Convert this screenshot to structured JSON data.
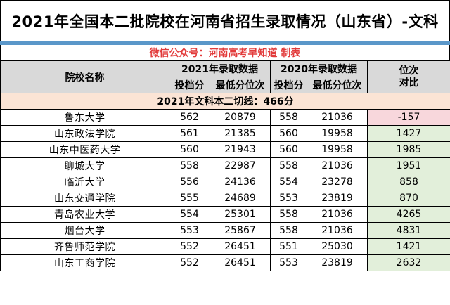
{
  "title": "2021年全国本二批院校在河南省招生录取情况（山东省）-文科",
  "wechat": "微信公众号：河南高考早知道 制表",
  "headers": {
    "school": "院校名称",
    "y2021": "2021年录取数据",
    "y2020": "2020年录取数据",
    "rank_compare": "位次对比",
    "score": "投档分",
    "min_rank": "最低分位次"
  },
  "cutoff_line": "2021年文科本二切线：466分",
  "rows": [
    {
      "school": "鲁东大学",
      "s21": "562",
      "r21": "20879",
      "s20": "558",
      "r20": "21036",
      "diff": "-157"
    },
    {
      "school": "山东政法学院",
      "s21": "561",
      "r21": "21385",
      "s20": "560",
      "r20": "19958",
      "diff": "1427"
    },
    {
      "school": "山东中医药大学",
      "s21": "560",
      "r21": "21943",
      "s20": "560",
      "r20": "19958",
      "diff": "1985"
    },
    {
      "school": "聊城大学",
      "s21": "558",
      "r21": "22987",
      "s20": "558",
      "r20": "21036",
      "diff": "1951"
    },
    {
      "school": "临沂大学",
      "s21": "556",
      "r21": "24136",
      "s20": "554",
      "r20": "23278",
      "diff": "858"
    },
    {
      "school": "山东交通学院",
      "s21": "555",
      "r21": "24689",
      "s20": "553",
      "r20": "23819",
      "diff": "870"
    },
    {
      "school": "青岛农业大学",
      "s21": "554",
      "r21": "25301",
      "s20": "558",
      "r20": "21036",
      "diff": "4265"
    },
    {
      "school": "烟台大学",
      "s21": "553",
      "r21": "25867",
      "s20": "558",
      "r20": "21036",
      "diff": "4831"
    },
    {
      "school": "齐鲁师范学院",
      "s21": "552",
      "r21": "26451",
      "s20": "551",
      "r20": "25030",
      "diff": "1421"
    },
    {
      "school": "山东工商学院",
      "s21": "552",
      "r21": "26451",
      "s20": "553",
      "r20": "23819",
      "diff": "2632"
    }
  ]
}
